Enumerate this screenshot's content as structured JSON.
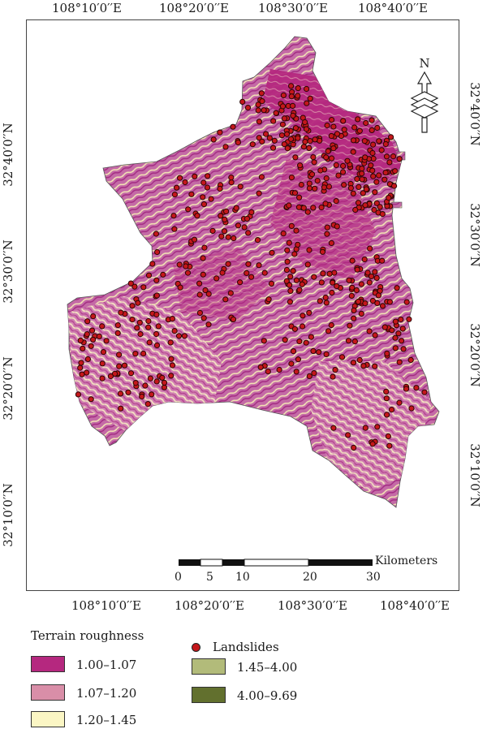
{
  "top_axis": [
    "108°10′0′′E",
    "108°20′0′′E",
    "108°30′0′′E",
    "108°40′0′′E"
  ],
  "bottom_axis": [
    "108°10′0′′E",
    "108°20′0′′E",
    "108°30′0′′E",
    "108°40′0′′E"
  ],
  "left_axis": [
    "32°40′0′′N",
    "32°30′0′′N",
    "32°20′0′′N",
    "32°10′0′′N"
  ],
  "right_axis": [
    "32°40′0′′N",
    "32°30′0′′N",
    "32°20′0′′N",
    "32°10′0′′N"
  ],
  "north_arrow": {
    "label": "N",
    "icon": "north-arrow-icon"
  },
  "scale_bar": {
    "unit": "Kilometers",
    "ticks": [
      "0",
      "5",
      "10",
      "20",
      "30"
    ]
  },
  "legend": {
    "title": "Terrain roughness",
    "classes": [
      {
        "label": "1.00–1.07",
        "color": "#b5287f"
      },
      {
        "label": "1.07–1.20",
        "color": "#d98ea8"
      },
      {
        "label": "1.20–1.45",
        "color": "#fbf6c4"
      },
      {
        "label": "1.45–4.00",
        "color": "#b2bb7a"
      },
      {
        "label": "4.00–9.69",
        "color": "#62702e"
      }
    ],
    "landslides_label": "Landslides",
    "landslide_color": "#c4171b"
  }
}
